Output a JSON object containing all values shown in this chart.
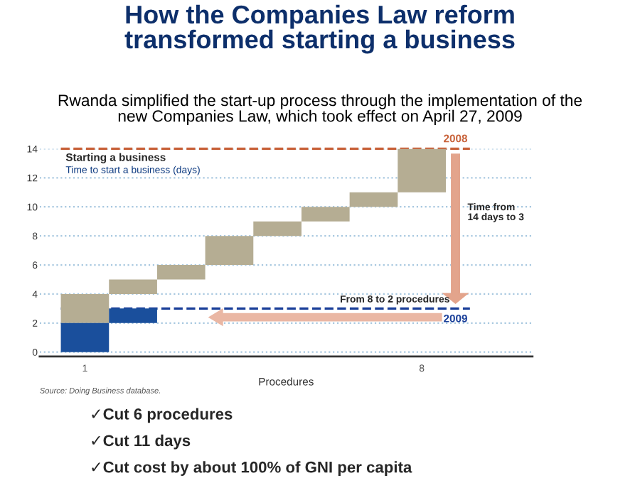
{
  "chart_data": {
    "type": "bar",
    "title": "How the Companies Law reform\ntransformed starting a business",
    "subtitle": "Rwanda simplified the start-up process through the implementation of the\nnew Companies Law, which took effect on April 27, 2009",
    "xlabel": "Procedures",
    "categories": [
      "1",
      null,
      null,
      null,
      null,
      null,
      null,
      "8"
    ],
    "series": [
      {
        "color": "#b5ad93",
        "base": [
          2,
          4,
          5,
          6,
          8,
          9,
          10,
          11
        ],
        "values": [
          2,
          1,
          1,
          2,
          1,
          1,
          1,
          3
        ]
      },
      {
        "color": "#1a4f9c",
        "base": [
          0,
          2,
          null,
          null,
          null,
          null,
          null,
          null
        ],
        "values": [
          2,
          1,
          null,
          null,
          null,
          null,
          null,
          null
        ]
      }
    ],
    "ylim": [
      -0.3,
      14
    ],
    "yticks": [
      0,
      2,
      4,
      6,
      8,
      10,
      12,
      14
    ],
    "grid": "y",
    "ref_lines": [
      {
        "axis": "y",
        "value": 14,
        "color": "#c8623a",
        "line_style": "dashed"
      },
      {
        "axis": "y",
        "value": 3,
        "color": "#1a3f99",
        "line_style": "dashed"
      }
    ],
    "annotations": [
      "2008",
      "2009",
      "Starting a business",
      "Time to start a business (days)",
      "Time from\n14 days to 3",
      "From 8 to 2 procedures",
      "Source: Doing Business database.",
      "✓Cut 6 procedures",
      "✓Cut 11 days",
      "✓Cut cost by about 100% of GNI per capita"
    ]
  }
}
